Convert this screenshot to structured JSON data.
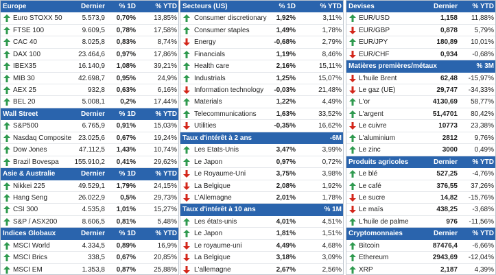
{
  "panels": [
    {
      "sections": [
        {
          "title": "Europe",
          "headers": [
            "Dernier",
            "% 1D",
            "% YTD"
          ],
          "rows": [
            {
              "trend": "up",
              "cells": [
                "Euro STOXX 50",
                "5.573,9",
                "0,70%",
                "13,85%"
              ]
            },
            {
              "trend": "up",
              "cells": [
                "FTSE 100",
                "9.609,5",
                "0,78%",
                "17,58%"
              ]
            },
            {
              "trend": "up",
              "cells": [
                "CAC 40",
                "8.025,8",
                "0,83%",
                "8,74%"
              ]
            },
            {
              "trend": "up",
              "cells": [
                "DAX 100",
                "23.464,6",
                "0,97%",
                "17,86%"
              ]
            },
            {
              "trend": "up",
              "cells": [
                "IBEX35",
                "16.140,9",
                "1,08%",
                "39,21%"
              ]
            },
            {
              "trend": "up",
              "cells": [
                "MIB 30",
                "42.698,7",
                "0,95%",
                "24,9%"
              ]
            },
            {
              "trend": "up",
              "cells": [
                "AEX 25",
                "932,8",
                "0,63%",
                "6,16%"
              ]
            },
            {
              "trend": "up",
              "cells": [
                "BEL 20",
                "5.008,1",
                "0,2%",
                "17,44%"
              ]
            }
          ]
        },
        {
          "title": "Wall Street",
          "headers": [
            "Dernier",
            "% 1D",
            "% YTD"
          ],
          "rows": [
            {
              "trend": "up",
              "cells": [
                "S&P500",
                "6.765,9",
                "0,91%",
                "15,03%"
              ]
            },
            {
              "trend": "up",
              "cells": [
                "Nasdaq Composite",
                "23.025,6",
                "0,67%",
                "19,24%"
              ]
            },
            {
              "trend": "up",
              "cells": [
                "Dow Jones",
                "47.112,5",
                "1,43%",
                "10,74%"
              ]
            },
            {
              "trend": "up",
              "cells": [
                "Brazil Bovespa",
                "155.910,2",
                "0,41%",
                "29,62%"
              ]
            }
          ]
        },
        {
          "title": "Asie & Australie",
          "headers": [
            "Dernier",
            "% 1D",
            "% YTD"
          ],
          "rows": [
            {
              "trend": "up",
              "cells": [
                "Nikkei 225",
                "49.529,1",
                "1,79%",
                "24,15%"
              ]
            },
            {
              "trend": "up",
              "cells": [
                "Hang Seng",
                "26.022,9",
                "0,5%",
                "29,73%"
              ]
            },
            {
              "trend": "up",
              "cells": [
                "CSI 300",
                "4.535,8",
                "1,01%",
                "15,27%"
              ]
            },
            {
              "trend": "up",
              "cells": [
                "S&P / ASX200",
                "8.606,5",
                "0,81%",
                "5,48%"
              ]
            }
          ]
        },
        {
          "title": "Indices Globaux",
          "headers": [
            "Dernier",
            "% 1D",
            "% YTD"
          ],
          "rows": [
            {
              "trend": "up",
              "cells": [
                "MSCI World",
                "4.334,5",
                "0,89%",
                "16,9%"
              ]
            },
            {
              "trend": "up",
              "cells": [
                "MSCI Brics",
                "338,5",
                "0,67%",
                "20,85%"
              ]
            },
            {
              "trend": "up",
              "cells": [
                "MSCI EM",
                "1.353,8",
                "0,87%",
                "25,88%"
              ]
            }
          ]
        }
      ]
    },
    {
      "sections": [
        {
          "title": "Secteurs (US)",
          "headers": [
            "% 1D",
            "% YTD"
          ],
          "rows": [
            {
              "trend": "up",
              "cells": [
                "Consumer discretionary",
                "1,92%",
                "3,11%"
              ]
            },
            {
              "trend": "up",
              "cells": [
                "Consumer staples",
                "1,49%",
                "1,78%"
              ]
            },
            {
              "trend": "down",
              "cells": [
                "Energy",
                "-0,68%",
                "2,79%"
              ]
            },
            {
              "trend": "up",
              "cells": [
                "Financials",
                "1,19%",
                "8,46%"
              ]
            },
            {
              "trend": "up",
              "cells": [
                "Health care",
                "2,16%",
                "15,11%"
              ]
            },
            {
              "trend": "up",
              "cells": [
                "Industrials",
                "1,25%",
                "15,07%"
              ]
            },
            {
              "trend": "down",
              "cells": [
                "Information technology",
                "-0,03%",
                "21,48%"
              ]
            },
            {
              "trend": "up",
              "cells": [
                "Materials",
                "1,22%",
                "4,49%"
              ]
            },
            {
              "trend": "up",
              "cells": [
                "Telecommunications",
                "1,63%",
                "33,52%"
              ]
            },
            {
              "trend": "down",
              "cells": [
                "Utilities",
                "-0,35%",
                "16,62%"
              ]
            }
          ]
        },
        {
          "title": "Taux d'intérêt à 2 ans",
          "headers": [
            "-6M"
          ],
          "rows": [
            {
              "trend": "up",
              "cells": [
                "Les Etats-Unis",
                "3,47%",
                "3,99%"
              ]
            },
            {
              "trend": "up",
              "cells": [
                "Le Japon",
                "0,97%",
                "0,72%"
              ]
            },
            {
              "trend": "down",
              "cells": [
                "Le Royaume-Uni",
                "3,75%",
                "3,98%"
              ]
            },
            {
              "trend": "down",
              "cells": [
                "La Belgique",
                "2,08%",
                "1,92%"
              ]
            },
            {
              "trend": "down",
              "cells": [
                "L'Allemagne",
                "2,01%",
                "1,78%"
              ]
            }
          ]
        },
        {
          "title": "Taux d'intérêt à 10 ans",
          "headers": [
            "% 1M"
          ],
          "rows": [
            {
              "trend": "up",
              "cells": [
                "Les états-unis",
                "4,01%",
                "4,51%"
              ]
            },
            {
              "trend": "up",
              "cells": [
                "Le Japon",
                "1,81%",
                "1,51%"
              ]
            },
            {
              "trend": "down",
              "cells": [
                "Le royaume-uni",
                "4,49%",
                "4,68%"
              ]
            },
            {
              "trend": "down",
              "cells": [
                "La Belgique",
                "3,18%",
                "3,09%"
              ]
            },
            {
              "trend": "down",
              "cells": [
                "L'allemagne",
                "2,67%",
                "2,56%"
              ]
            }
          ]
        }
      ]
    },
    {
      "sections": [
        {
          "title": "Devises",
          "headers": [
            "Dernier",
            "% YTD"
          ],
          "rows": [
            {
              "trend": "up",
              "cells": [
                "EUR/USD",
                "1,158",
                "11,88%"
              ]
            },
            {
              "trend": "down",
              "cells": [
                "EUR/GBP",
                "0,878",
                "5,79%"
              ]
            },
            {
              "trend": "up",
              "cells": [
                "EUR/JPY",
                "180,89",
                "10,01%"
              ]
            },
            {
              "trend": "down",
              "cells": [
                "EUR/CHF",
                "0,934",
                "-0,68%"
              ]
            }
          ]
        },
        {
          "title": "Matières premières/métaux",
          "headers": [
            "% 3M"
          ],
          "rows": [
            {
              "trend": "down",
              "cells": [
                "L'huile Brent",
                "62,48",
                "-15,97%"
              ]
            },
            {
              "trend": "down",
              "cells": [
                "Le gaz (UE)",
                "29,747",
                "-34,33%"
              ]
            },
            {
              "trend": "up",
              "cells": [
                "L'or",
                "4130,69",
                "58,77%"
              ]
            },
            {
              "trend": "up",
              "cells": [
                "L'argent",
                "51,4701",
                "80,42%"
              ]
            },
            {
              "trend": "down",
              "cells": [
                "Le cuivre",
                "10773",
                "23,38%"
              ]
            },
            {
              "trend": "up",
              "cells": [
                "L'aluminium",
                "2812",
                "9,76%"
              ]
            },
            {
              "trend": "up",
              "cells": [
                "Le zinc",
                "3000",
                "0,49%"
              ]
            }
          ]
        },
        {
          "title": "Produits agricoles",
          "headers": [
            "Dernier",
            "% YTD"
          ],
          "rows": [
            {
              "trend": "up",
              "cells": [
                "Le blé",
                "527,25",
                "-4,76%"
              ]
            },
            {
              "trend": "up",
              "cells": [
                "Le café",
                "376,55",
                "37,26%"
              ]
            },
            {
              "trend": "down",
              "cells": [
                "Le sucre",
                "14,82",
                "-15,76%"
              ]
            },
            {
              "trend": "down",
              "cells": [
                "Le maïs",
                "438,25",
                "-3,68%"
              ]
            },
            {
              "trend": "up",
              "cells": [
                "L'huile de palme",
                "976",
                "-11,56%"
              ]
            }
          ]
        },
        {
          "title": "Cryptomonnaies",
          "headers": [
            "Dernier",
            "% YTD"
          ],
          "rows": [
            {
              "trend": "up",
              "cells": [
                "Bitcoin",
                "87476,4",
                "-6,66%"
              ]
            },
            {
              "trend": "up",
              "cells": [
                "Ethereum",
                "2943,69",
                "-12,04%"
              ]
            },
            {
              "trend": "up",
              "cells": [
                "XRP",
                "2,187",
                "4,39%"
              ]
            }
          ]
        }
      ]
    }
  ]
}
